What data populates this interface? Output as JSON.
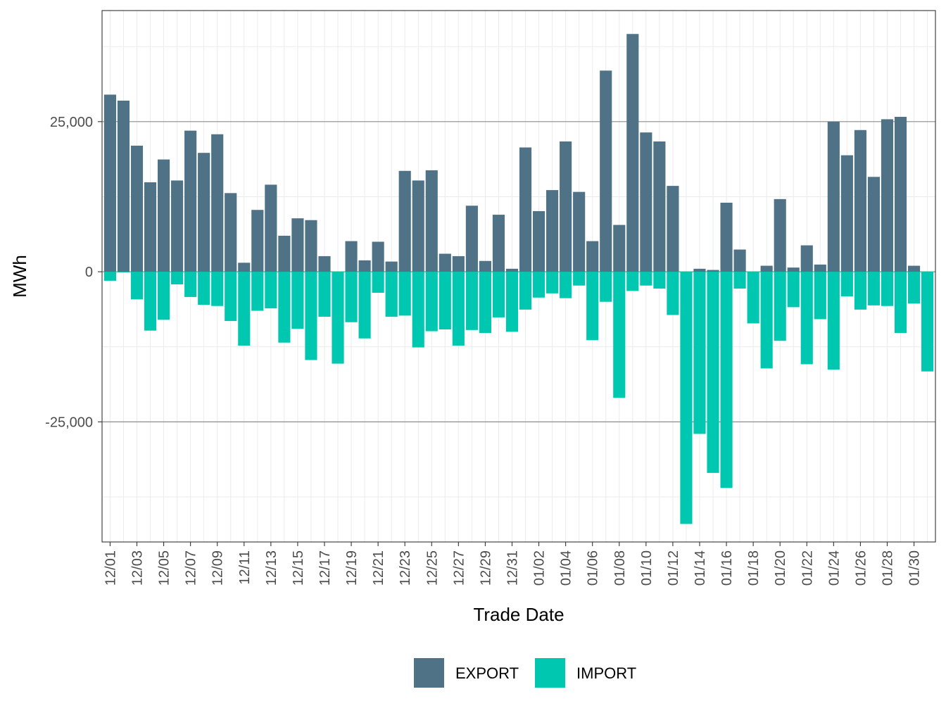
{
  "chart_data": {
    "type": "bar",
    "xlabel": "Trade Date",
    "ylabel": "MWh",
    "ylim": [
      -45000,
      43500
    ],
    "y_ticks": [
      25000,
      0,
      -25000
    ],
    "y_tick_labels": [
      "25,000",
      "0",
      "-25,000"
    ],
    "grid": true,
    "stacked": "diverging",
    "legend_position": "bottom",
    "categories": [
      "12/01",
      "12/02",
      "12/03",
      "12/04",
      "12/05",
      "12/06",
      "12/07",
      "12/08",
      "12/09",
      "12/10",
      "12/11",
      "12/12",
      "12/13",
      "12/14",
      "12/15",
      "12/16",
      "12/17",
      "12/18",
      "12/19",
      "12/20",
      "12/21",
      "12/22",
      "12/23",
      "12/24",
      "12/25",
      "12/26",
      "12/27",
      "12/28",
      "12/29",
      "12/30",
      "12/31",
      "01/01",
      "01/02",
      "01/03",
      "01/04",
      "01/05",
      "01/06",
      "01/07",
      "01/08",
      "01/09",
      "01/10",
      "01/11",
      "01/12",
      "01/13",
      "01/14",
      "01/15",
      "01/16",
      "01/17",
      "01/18",
      "01/19",
      "01/20",
      "01/21",
      "01/22",
      "01/23",
      "01/24",
      "01/25",
      "01/26",
      "01/27",
      "01/28",
      "01/29",
      "01/30",
      "01/31"
    ],
    "x_tick_labels": [
      "12/01",
      "12/03",
      "12/05",
      "12/07",
      "12/09",
      "12/11",
      "12/13",
      "12/15",
      "12/17",
      "12/19",
      "12/21",
      "12/23",
      "12/25",
      "12/27",
      "12/29",
      "12/31",
      "01/02",
      "01/04",
      "01/06",
      "01/08",
      "01/10",
      "01/12",
      "01/14",
      "01/16",
      "01/18",
      "01/20",
      "01/22",
      "01/24",
      "01/26",
      "01/28",
      "01/30"
    ],
    "series": [
      {
        "name": "EXPORT",
        "color": "#4f7286",
        "values": [
          29500,
          28500,
          21000,
          14900,
          18700,
          15200,
          23500,
          19800,
          22900,
          13100,
          1500,
          10300,
          14500,
          6000,
          8900,
          8600,
          2600,
          0,
          5100,
          1900,
          5000,
          1700,
          16800,
          15200,
          16900,
          3000,
          2600,
          11000,
          1800,
          9500,
          500,
          20700,
          10100,
          13600,
          21700,
          13300,
          5100,
          33500,
          7800,
          39600,
          23200,
          21700,
          14300,
          0,
          500,
          300,
          11500,
          3700,
          0,
          1000,
          12100,
          700,
          4400,
          1200,
          25000,
          19400,
          23600,
          15800,
          25400,
          25800,
          1000,
          0
        ]
      },
      {
        "name": "IMPORT",
        "color": "#00c8b0",
        "values": [
          -1500,
          -100,
          -4600,
          -9800,
          -8000,
          -2100,
          -4200,
          -5500,
          -5700,
          -8200,
          -12300,
          -6500,
          -6100,
          -11800,
          -9500,
          -14700,
          -7500,
          -15300,
          -8400,
          -11100,
          -3500,
          -7500,
          -7300,
          -12600,
          -9900,
          -9600,
          -12300,
          -9700,
          -10200,
          -7600,
          -10000,
          -6300,
          -4300,
          -3600,
          -4400,
          -2300,
          -11400,
          -5000,
          -21000,
          -3200,
          -2300,
          -2800,
          -7200,
          -42000,
          -27000,
          -33500,
          -36000,
          -2800,
          -8600,
          -16100,
          -11500,
          -5900,
          -15400,
          -7900,
          -16300,
          -4100,
          -6300,
          -5600,
          -5700,
          -10200,
          -5300,
          -16600
        ]
      }
    ]
  }
}
